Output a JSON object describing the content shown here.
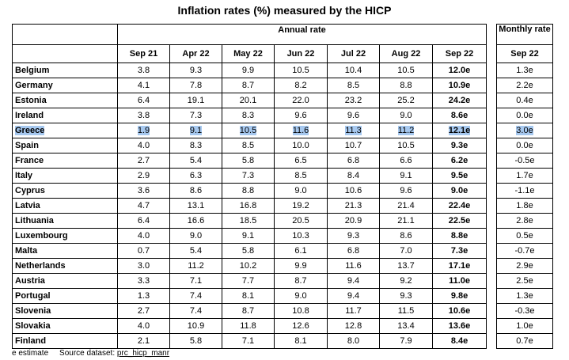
{
  "title": "Inflation rates (%) measured by the HICP",
  "header": {
    "annual_label": "Annual rate",
    "monthly_label": "Monthly rate",
    "columns": [
      "Sep 21",
      "Apr 22",
      "May 22",
      "Jun 22",
      "Jul 22",
      "Aug 22",
      "Sep 22"
    ],
    "monthly_column": "Sep 22"
  },
  "rows": [
    {
      "country": "Belgium",
      "values": [
        "3.8",
        "9.3",
        "9.9",
        "10.5",
        "10.4",
        "10.5",
        "12.0e"
      ],
      "monthly": "1.3e"
    },
    {
      "country": "Germany",
      "values": [
        "4.1",
        "7.8",
        "8.7",
        "8.2",
        "8.5",
        "8.8",
        "10.9e"
      ],
      "monthly": "2.2e"
    },
    {
      "country": "Estonia",
      "values": [
        "6.4",
        "19.1",
        "20.1",
        "22.0",
        "23.2",
        "25.2",
        "24.2e"
      ],
      "monthly": "0.4e"
    },
    {
      "country": "Ireland",
      "values": [
        "3.8",
        "7.3",
        "8.3",
        "9.6",
        "9.6",
        "9.0",
        "8.6e"
      ],
      "monthly": "0.0e"
    },
    {
      "country": "Greece",
      "values": [
        "1.9",
        "9.1",
        "10.5",
        "11.6",
        "11.3",
        "11.2",
        "12.1e"
      ],
      "monthly": "3.0e",
      "highlighted": true
    },
    {
      "country": "Spain",
      "values": [
        "4.0",
        "8.3",
        "8.5",
        "10.0",
        "10.7",
        "10.5",
        "9.3e"
      ],
      "monthly": "0.0e"
    },
    {
      "country": "France",
      "values": [
        "2.7",
        "5.4",
        "5.8",
        "6.5",
        "6.8",
        "6.6",
        "6.2e"
      ],
      "monthly": "-0.5e"
    },
    {
      "country": "Italy",
      "values": [
        "2.9",
        "6.3",
        "7.3",
        "8.5",
        "8.4",
        "9.1",
        "9.5e"
      ],
      "monthly": "1.7e"
    },
    {
      "country": "Cyprus",
      "values": [
        "3.6",
        "8.6",
        "8.8",
        "9.0",
        "10.6",
        "9.6",
        "9.0e"
      ],
      "monthly": "-1.1e"
    },
    {
      "country": "Latvia",
      "values": [
        "4.7",
        "13.1",
        "16.8",
        "19.2",
        "21.3",
        "21.4",
        "22.4e"
      ],
      "monthly": "1.8e"
    },
    {
      "country": "Lithuania",
      "values": [
        "6.4",
        "16.6",
        "18.5",
        "20.5",
        "20.9",
        "21.1",
        "22.5e"
      ],
      "monthly": "2.8e"
    },
    {
      "country": "Luxembourg",
      "values": [
        "4.0",
        "9.0",
        "9.1",
        "10.3",
        "9.3",
        "8.6",
        "8.8e"
      ],
      "monthly": "0.5e"
    },
    {
      "country": "Malta",
      "values": [
        "0.7",
        "5.4",
        "5.8",
        "6.1",
        "6.8",
        "7.0",
        "7.3e"
      ],
      "monthly": "-0.7e"
    },
    {
      "country": "Netherlands",
      "values": [
        "3.0",
        "11.2",
        "10.2",
        "9.9",
        "11.6",
        "13.7",
        "17.1e"
      ],
      "monthly": "2.9e"
    },
    {
      "country": "Austria",
      "values": [
        "3.3",
        "7.1",
        "7.7",
        "8.7",
        "9.4",
        "9.2",
        "11.0e"
      ],
      "monthly": "2.5e"
    },
    {
      "country": "Portugal",
      "values": [
        "1.3",
        "7.4",
        "8.1",
        "9.0",
        "9.4",
        "9.3",
        "9.8e"
      ],
      "monthly": "1.3e"
    },
    {
      "country": "Slovenia",
      "values": [
        "2.7",
        "7.4",
        "8.7",
        "10.8",
        "11.7",
        "11.5",
        "10.6e"
      ],
      "monthly": "-0.3e"
    },
    {
      "country": "Slovakia",
      "values": [
        "4.0",
        "10.9",
        "11.8",
        "12.6",
        "12.8",
        "13.4",
        "13.6e"
      ],
      "monthly": "1.0e"
    },
    {
      "country": "Finland",
      "values": [
        "2.1",
        "5.8",
        "7.1",
        "8.1",
        "8.0",
        "7.9",
        "8.4e"
      ],
      "monthly": "0.7e"
    }
  ],
  "footer": {
    "estimate_note": "e estimate",
    "source_label": "Source dataset:",
    "source_code": "prc_hicp_manr"
  },
  "colors": {
    "highlight": "#a6c8ef"
  }
}
